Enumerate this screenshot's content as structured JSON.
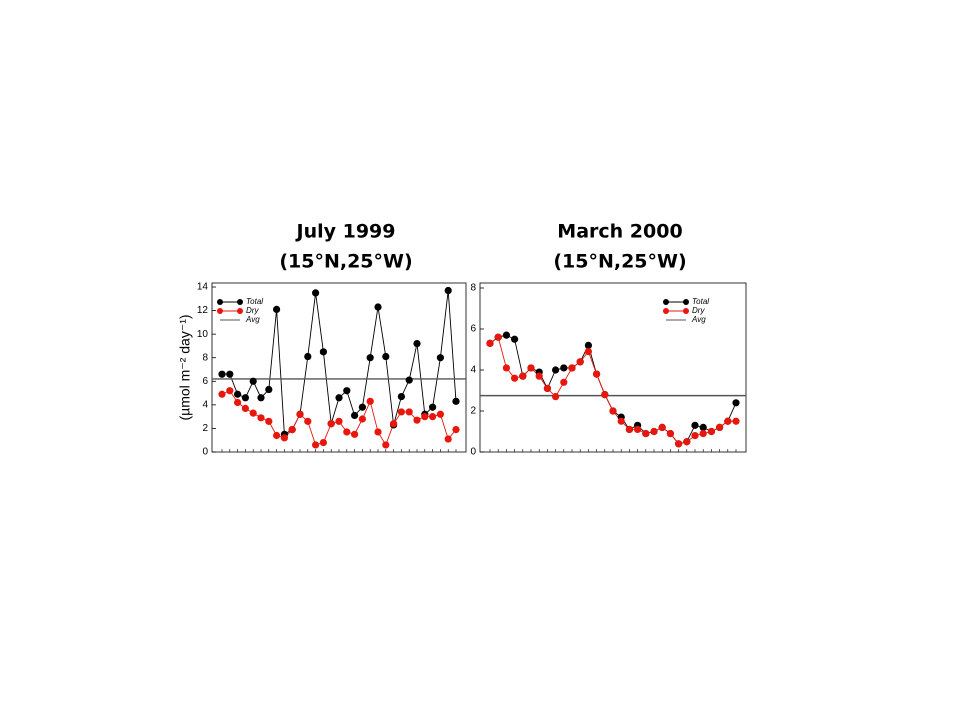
{
  "chart_data": [
    {
      "type": "line",
      "title": "July 1999",
      "subtitle": "(15°N,25°W)",
      "y_label": "(µmol m⁻² day⁻¹)",
      "categories": [
        null,
        null,
        null,
        null,
        null,
        null,
        null,
        null,
        null,
        null,
        null,
        null,
        null,
        null,
        null,
        null,
        null,
        null,
        null,
        null,
        null,
        null,
        null,
        null,
        null,
        null,
        null,
        null,
        null,
        null,
        null
      ],
      "series": [
        {
          "name": "Total",
          "color": "#000000",
          "values": [
            6.6,
            6.6,
            4.9,
            4.6,
            6.0,
            4.6,
            5.3,
            12.1,
            1.5,
            1.9,
            3.2,
            8.1,
            13.5,
            8.5,
            2.4,
            4.6,
            5.2,
            3.1,
            3.8,
            8.0,
            12.3,
            8.1,
            2.3,
            4.7,
            6.1,
            9.2,
            3.2,
            3.8,
            8.0,
            13.7,
            4.3
          ]
        },
        {
          "name": "Dry",
          "color": "#e8160c",
          "values": [
            4.9,
            5.2,
            4.2,
            3.7,
            3.3,
            2.9,
            2.6,
            1.4,
            1.2,
            1.9,
            3.2,
            2.6,
            0.6,
            0.8,
            2.4,
            2.6,
            1.7,
            1.5,
            2.8,
            4.3,
            1.7,
            0.6,
            2.4,
            3.4,
            3.4,
            2.7,
            3.0,
            3.0,
            3.2,
            1.1,
            1.9
          ]
        },
        {
          "name": "Avg",
          "color": "#555555",
          "value": 6.2
        }
      ],
      "ylim": [
        0,
        14
      ],
      "yticks": [
        0,
        2,
        4,
        6,
        8,
        10,
        12,
        14
      ],
      "legend": "top-left"
    },
    {
      "type": "line",
      "title": "March 2000",
      "subtitle": "(15°N,25°W)",
      "categories": [
        null,
        null,
        null,
        null,
        null,
        null,
        null,
        null,
        null,
        null,
        null,
        null,
        null,
        null,
        null,
        null,
        null,
        null,
        null,
        null,
        null,
        null,
        null,
        null,
        null,
        null,
        null,
        null,
        null,
        null,
        null
      ],
      "series": [
        {
          "name": "Total",
          "color": "#000000",
          "values": [
            5.3,
            5.6,
            5.7,
            5.5,
            3.7,
            4.1,
            3.9,
            3.1,
            4.0,
            4.1,
            4.1,
            4.4,
            5.2,
            3.8,
            2.8,
            2.0,
            1.7,
            1.1,
            1.3,
            0.9,
            1.0,
            1.2,
            0.9,
            0.4,
            0.5,
            1.3,
            1.2,
            1.0,
            1.2,
            1.5,
            2.4
          ]
        },
        {
          "name": "Dry",
          "color": "#e8160c",
          "values": [
            5.3,
            5.6,
            4.1,
            3.6,
            3.7,
            4.1,
            3.7,
            3.1,
            2.7,
            3.4,
            4.1,
            4.4,
            4.9,
            3.8,
            2.8,
            2.0,
            1.5,
            1.1,
            1.1,
            0.9,
            1.0,
            1.2,
            0.9,
            0.4,
            0.5,
            0.8,
            0.9,
            1.0,
            1.2,
            1.5,
            1.5
          ]
        },
        {
          "name": "Avg",
          "color": "#555555",
          "value": 2.75
        }
      ],
      "ylim": [
        0,
        8
      ],
      "yticks": [
        0,
        2,
        4,
        6,
        8
      ],
      "legend": "top-right"
    }
  ]
}
